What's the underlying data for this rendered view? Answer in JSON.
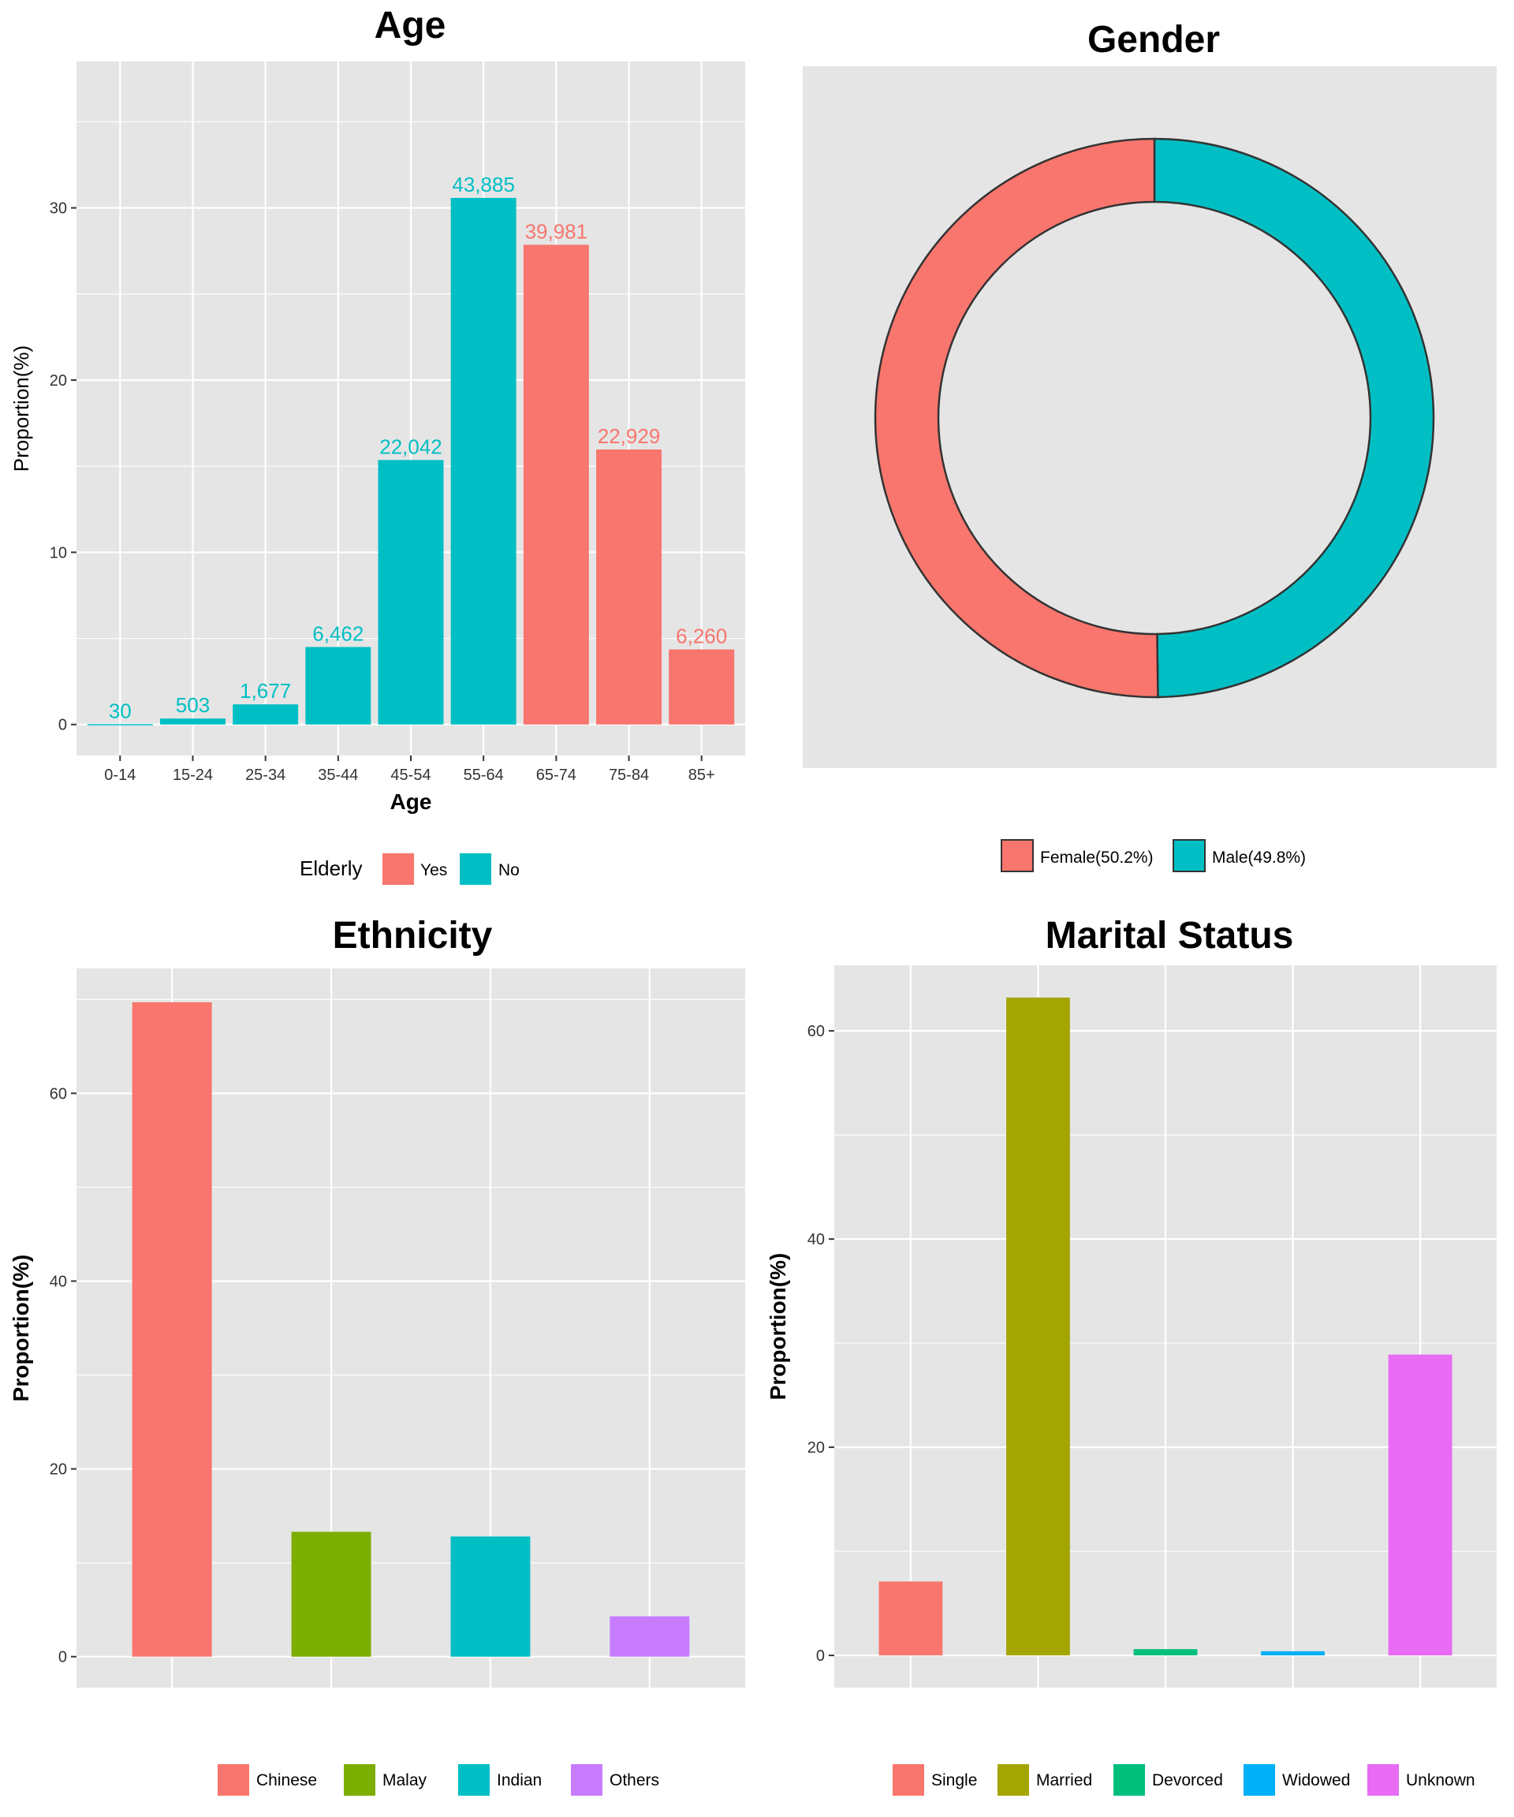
{
  "chart_data": [
    {
      "id": "age",
      "type": "bar",
      "title": "Age",
      "xlabel": "Age",
      "ylabel": "Proportion(%)",
      "ylim": [
        -1.8,
        38.5
      ],
      "yticks": [
        0,
        10,
        20,
        30
      ],
      "grid": true,
      "legend_position": "bottom",
      "legend_title": "Elderly",
      "legend": [
        {
          "label": "Yes",
          "color": "#F8766D"
        },
        {
          "label": "No",
          "color": "#00BFC4"
        }
      ],
      "categories": [
        "0-14",
        "15-24",
        "25-34",
        "35-44",
        "45-54",
        "55-64",
        "65-74",
        "75-84",
        "85+"
      ],
      "values": [
        0.02,
        0.35,
        1.17,
        4.5,
        15.36,
        30.58,
        27.86,
        15.97,
        4.36
      ],
      "labels": [
        "30",
        "503",
        "1,677",
        "6,462",
        "22,042",
        "43,885",
        "39,981",
        "22,929",
        "6,260"
      ],
      "elderly": [
        "No",
        "No",
        "No",
        "No",
        "No",
        "No",
        "Yes",
        "Yes",
        "Yes"
      ]
    },
    {
      "id": "gender",
      "type": "pie",
      "title": "Gender",
      "legend_position": "bottom",
      "grid": false,
      "slices": [
        {
          "label": "Female(50.2%)",
          "value": 50.2,
          "color": "#F8766D"
        },
        {
          "label": "Male(49.8%)",
          "value": 49.8,
          "color": "#00BFC4"
        }
      ]
    },
    {
      "id": "ethnicity",
      "type": "bar",
      "title": "Ethnicity",
      "xlabel": "",
      "ylabel": "Proportion(%)",
      "ylim": [
        -3.3,
        73.3
      ],
      "yticks": [
        0,
        20,
        40,
        60
      ],
      "grid": true,
      "legend_position": "bottom",
      "categories": [
        "Chinese",
        "Malay",
        "Indian",
        "Others"
      ],
      "values": [
        69.7,
        13.3,
        12.8,
        4.3
      ],
      "colors": [
        "#F8766D",
        "#7CAE00",
        "#00BFC4",
        "#C77CFF"
      ]
    },
    {
      "id": "marital",
      "type": "bar",
      "title": "Marital Status",
      "xlabel": "",
      "ylabel": "Proportion(%)",
      "ylim": [
        -3.1,
        66.3
      ],
      "yticks": [
        0,
        20,
        40,
        60
      ],
      "grid": true,
      "legend_position": "bottom",
      "categories": [
        "Single",
        "Married",
        "Devorced",
        "Widowed",
        "Unknown"
      ],
      "values": [
        7.1,
        63.2,
        0.6,
        0.4,
        28.9
      ],
      "colors": [
        "#F8766D",
        "#A3A500",
        "#00BF7D",
        "#00B0F6",
        "#E76BF3"
      ]
    }
  ]
}
